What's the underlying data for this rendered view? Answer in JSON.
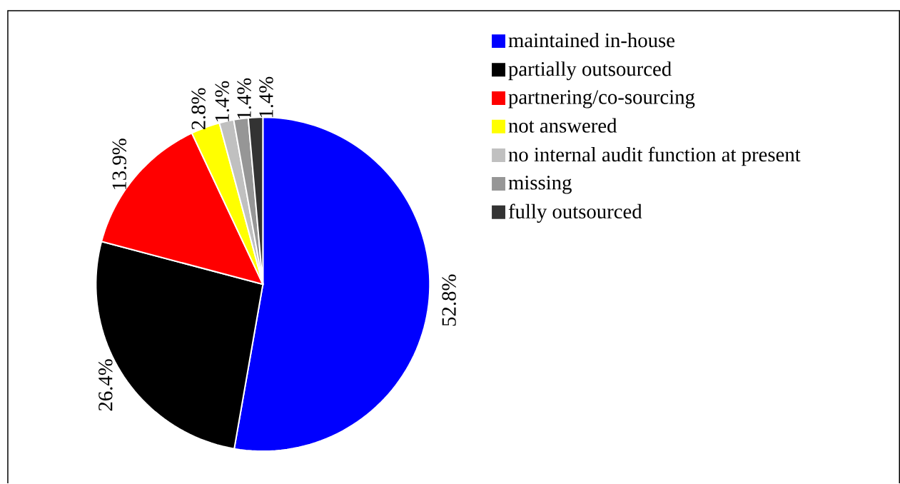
{
  "chart_data": {
    "type": "pie",
    "categories": [
      "maintained in-house",
      "partially outsourced",
      "partnering/co-sourcing",
      "not answered",
      "no internal audit function at present",
      "missing",
      "fully outsourced"
    ],
    "values": [
      52.8,
      26.4,
      13.9,
      2.8,
      1.4,
      1.4,
      1.4
    ],
    "colors": [
      "#0000ff",
      "#000000",
      "#ff0000",
      "#ffff00",
      "#c0c0c0",
      "#969696",
      "#333333"
    ],
    "value_labels": [
      "52.8%",
      "26.4%",
      "13.9%",
      "2.8%",
      "1.4%",
      "1.4%",
      "1.4%"
    ],
    "legend": "right"
  }
}
